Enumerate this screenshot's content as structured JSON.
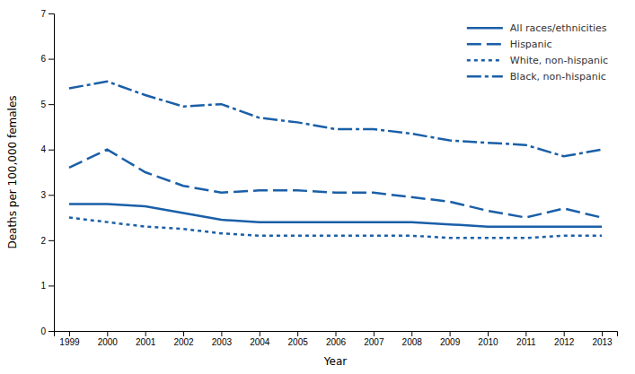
{
  "chart_data": {
    "type": "line",
    "x": [
      1999,
      2000,
      2001,
      2002,
      2003,
      2004,
      2005,
      2006,
      2007,
      2008,
      2009,
      2010,
      2011,
      2012,
      2013
    ],
    "xlim": [
      1998.6,
      2013.4
    ],
    "xticks": [
      1999,
      2000,
      2001,
      2002,
      2003,
      2004,
      2005,
      2006,
      2007,
      2008,
      2009,
      2010,
      2011,
      2012,
      2013
    ],
    "ylim": [
      0,
      7
    ],
    "yticks": [
      0,
      1,
      2,
      3,
      4,
      5,
      6,
      7
    ],
    "xlabel": "Year",
    "ylabel": "Deaths per 100,000 females",
    "grid": false,
    "legend": "upper right",
    "series": [
      {
        "name": "All races/ethnicities",
        "color": "#1a5fa8",
        "line_style": "solid",
        "values": [
          2.8,
          2.8,
          2.75,
          2.6,
          2.45,
          2.4,
          2.4,
          2.4,
          2.4,
          2.4,
          2.35,
          2.3,
          2.3,
          2.3,
          2.3
        ]
      },
      {
        "name": "Hispanic",
        "color": "#1a5fa8",
        "line_style": "dashed",
        "values": [
          3.6,
          4.0,
          3.5,
          3.2,
          3.05,
          3.1,
          3.1,
          3.05,
          3.05,
          2.95,
          2.85,
          2.65,
          2.5,
          2.7,
          2.5
        ]
      },
      {
        "name": "White, non-hispanic",
        "color": "#1a5fa8",
        "line_style": "dotted",
        "values": [
          2.5,
          2.4,
          2.3,
          2.25,
          2.15,
          2.1,
          2.1,
          2.1,
          2.1,
          2.1,
          2.05,
          2.05,
          2.05,
          2.1,
          2.1
        ]
      },
      {
        "name": "Black, non-hispanic",
        "color": "#1a5fa8",
        "line_style": "dashdot",
        "values": [
          5.35,
          5.5,
          5.2,
          4.95,
          5.0,
          4.7,
          4.6,
          4.45,
          4.45,
          4.35,
          4.2,
          4.15,
          4.1,
          3.85,
          4.0
        ]
      }
    ]
  }
}
